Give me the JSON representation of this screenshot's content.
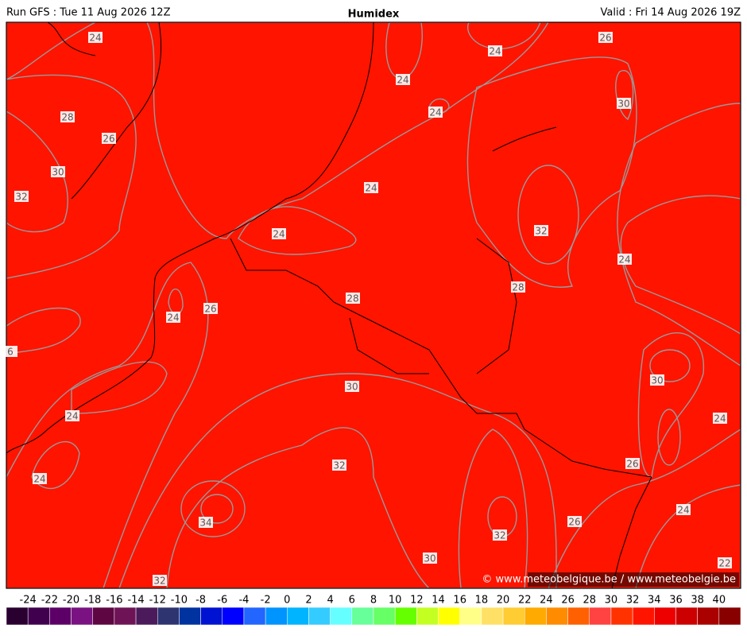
{
  "header": {
    "run": "Run GFS : Tue 11 Aug 2026 12Z",
    "title": "Humidex",
    "valid": "Valid : Fri 14 Aug 2026 19Z"
  },
  "map": {
    "contour_labels": [
      "24",
      "24",
      "26",
      "24",
      "30",
      "24",
      "28",
      "26",
      "30",
      "24",
      "32",
      "32",
      "24",
      "24",
      "28",
      "28",
      "26",
      "24",
      "6",
      "30",
      "30",
      "24",
      "24",
      "32",
      "26",
      "24",
      "24",
      "34",
      "26",
      "32",
      "30",
      "22",
      "32"
    ]
  },
  "colorbar": {
    "labels": [
      -24,
      -22,
      -20,
      -18,
      -16,
      -14,
      -12,
      -10,
      -8,
      -6,
      -4,
      -2,
      0,
      2,
      4,
      6,
      8,
      10,
      12,
      14,
      16,
      18,
      20,
      22,
      24,
      26,
      28,
      30,
      32,
      34,
      36,
      38,
      40
    ],
    "colors": [
      "#2a0030",
      "#40004e",
      "#5c0068",
      "#7a1282",
      "#5e0642",
      "#6e1456",
      "#4a1a5a",
      "#2e3470",
      "#0032a0",
      "#0012d2",
      "#0000ff",
      "#2266ff",
      "#0094ff",
      "#00b4ff",
      "#34ccff",
      "#66ffff",
      "#66ff99",
      "#66ff66",
      "#66ff00",
      "#c4ff22",
      "#ffff00",
      "#ffff88",
      "#ffe066",
      "#ffcc33",
      "#ffaa00",
      "#ff8c00",
      "#ff6000",
      "#ff4242",
      "#ff3200",
      "#ff1400",
      "#ee0000",
      "#cc0000",
      "#aa0000",
      "#880000"
    ]
  },
  "credit": "© www.meteobelgique.be / www.meteobelgie.be"
}
